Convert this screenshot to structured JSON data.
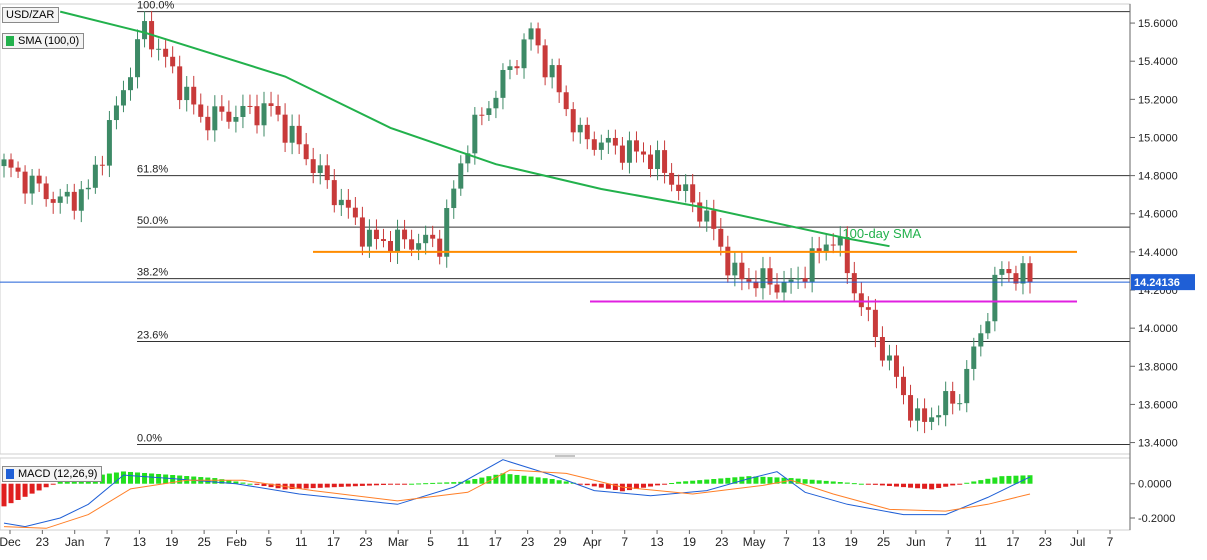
{
  "symbol": "USD/ZAR",
  "indicators": {
    "sma": {
      "label": "SMA (100,0)",
      "color": "#22b14c"
    },
    "macd": {
      "label": "MACD (12,26,9)",
      "color": "#1f5fd6"
    }
  },
  "colors": {
    "up": "#3d8a66",
    "down": "#c83a3a",
    "sma": "#22b14c",
    "resistance": "#ff8c00",
    "support": "#e020e0",
    "macd_line": "#1f5fd6",
    "signal_line": "#ff7f27",
    "hist_pos": "#22e01e",
    "hist_neg": "#e01e1e",
    "price_tag": "#1f5fd6"
  },
  "annotations": {
    "sma_label": "100-day SMA"
  },
  "chart_data": [
    {
      "type": "candlestick",
      "title": "USD/ZAR",
      "ylim": [
        13.34,
        15.7
      ],
      "yticks": [
        "15.6000",
        "15.4000",
        "15.2000",
        "15.0000",
        "14.8000",
        "14.6000",
        "14.4000",
        "14.2000",
        "14.0000",
        "13.8000",
        "13.6000",
        "13.4000"
      ],
      "last_price": "14.24136",
      "x_ticks": [
        "Dec",
        "23",
        "Jan",
        "7",
        "13",
        "19",
        "25",
        "Feb",
        "5",
        "11",
        "17",
        "23",
        "Mar",
        "5",
        "11",
        "17",
        "23",
        "29",
        "Apr",
        "7",
        "13",
        "19",
        "23",
        "May",
        "7",
        "13",
        "19",
        "25",
        "Jun",
        "7",
        "11",
        "17",
        "23",
        "Jul",
        "7"
      ],
      "fibonacci": [
        {
          "label": "100.0%",
          "value": 15.66
        },
        {
          "label": "61.8%",
          "value": 14.8
        },
        {
          "label": "50.0%",
          "value": 14.53
        },
        {
          "label": "38.2%",
          "value": 14.26
        },
        {
          "label": "23.6%",
          "value": 13.93
        },
        {
          "label": "0.0%",
          "value": 13.39
        }
      ],
      "levels": [
        {
          "name": "resistance",
          "value": 14.4
        },
        {
          "name": "support",
          "value": 14.14
        }
      ],
      "sma": [
        [
          8,
          15.66
        ],
        [
          20,
          15.55
        ],
        [
          40,
          15.32
        ],
        [
          55,
          15.05
        ],
        [
          70,
          14.86
        ],
        [
          85,
          14.73
        ],
        [
          100,
          14.63
        ],
        [
          110,
          14.55
        ],
        [
          120,
          14.47
        ],
        [
          126,
          14.43
        ]
      ],
      "key_points": [
        [
          0,
          14.85
        ],
        [
          8,
          14.66
        ],
        [
          12,
          14.72
        ],
        [
          20,
          15.58
        ],
        [
          28,
          15.1
        ],
        [
          38,
          15.15
        ],
        [
          52,
          14.46
        ],
        [
          62,
          14.45
        ],
        [
          66,
          14.99
        ],
        [
          75,
          15.55
        ],
        [
          82,
          15.0
        ],
        [
          92,
          14.9
        ],
        [
          100,
          14.58
        ],
        [
          104,
          14.27
        ],
        [
          112,
          14.22
        ],
        [
          118,
          14.49
        ],
        [
          122,
          14.12
        ],
        [
          130,
          13.5
        ],
        [
          136,
          13.65
        ],
        [
          142,
          14.32
        ],
        [
          146,
          14.24
        ]
      ]
    },
    {
      "type": "macd",
      "title": "MACD (12,26,9)",
      "ylim": [
        -0.27,
        0.15
      ],
      "yticks": [
        "0.0000",
        "-0.2000"
      ],
      "hist_key_points": [
        [
          0,
          -0.24
        ],
        [
          8,
          0.03
        ],
        [
          17,
          0.13
        ],
        [
          30,
          0.06
        ],
        [
          40,
          -0.06
        ],
        [
          58,
          0.0
        ],
        [
          65,
          0.02
        ],
        [
          71,
          0.11
        ],
        [
          78,
          0.05
        ],
        [
          88,
          -0.08
        ],
        [
          96,
          0.02
        ],
        [
          106,
          0.08
        ],
        [
          112,
          0.06
        ],
        [
          122,
          0.0
        ],
        [
          132,
          -0.06
        ],
        [
          142,
          0.08
        ],
        [
          146,
          0.09
        ]
      ],
      "macd_key_points": [
        [
          0,
          -0.23
        ],
        [
          3,
          -0.25
        ],
        [
          8,
          -0.2
        ],
        [
          12,
          -0.12
        ],
        [
          17,
          0.05
        ],
        [
          24,
          0.03
        ],
        [
          33,
          0.0
        ],
        [
          42,
          -0.06
        ],
        [
          56,
          -0.12
        ],
        [
          64,
          -0.02
        ],
        [
          71,
          0.14
        ],
        [
          78,
          0.05
        ],
        [
          84,
          -0.04
        ],
        [
          92,
          -0.07
        ],
        [
          100,
          -0.04
        ],
        [
          106,
          0.03
        ],
        [
          110,
          0.07
        ],
        [
          114,
          -0.05
        ],
        [
          120,
          -0.12
        ],
        [
          128,
          -0.18
        ],
        [
          134,
          -0.18
        ],
        [
          140,
          -0.08
        ],
        [
          146,
          0.04
        ]
      ],
      "signal_key_points": [
        [
          0,
          -0.25
        ],
        [
          6,
          -0.26
        ],
        [
          12,
          -0.18
        ],
        [
          18,
          -0.03
        ],
        [
          26,
          0.02
        ],
        [
          34,
          0.02
        ],
        [
          44,
          -0.04
        ],
        [
          56,
          -0.1
        ],
        [
          66,
          -0.05
        ],
        [
          72,
          0.08
        ],
        [
          80,
          0.06
        ],
        [
          88,
          -0.02
        ],
        [
          98,
          -0.06
        ],
        [
          108,
          -0.01
        ],
        [
          112,
          0.02
        ],
        [
          118,
          -0.06
        ],
        [
          126,
          -0.15
        ],
        [
          134,
          -0.16
        ],
        [
          140,
          -0.12
        ],
        [
          146,
          -0.06
        ]
      ]
    }
  ]
}
